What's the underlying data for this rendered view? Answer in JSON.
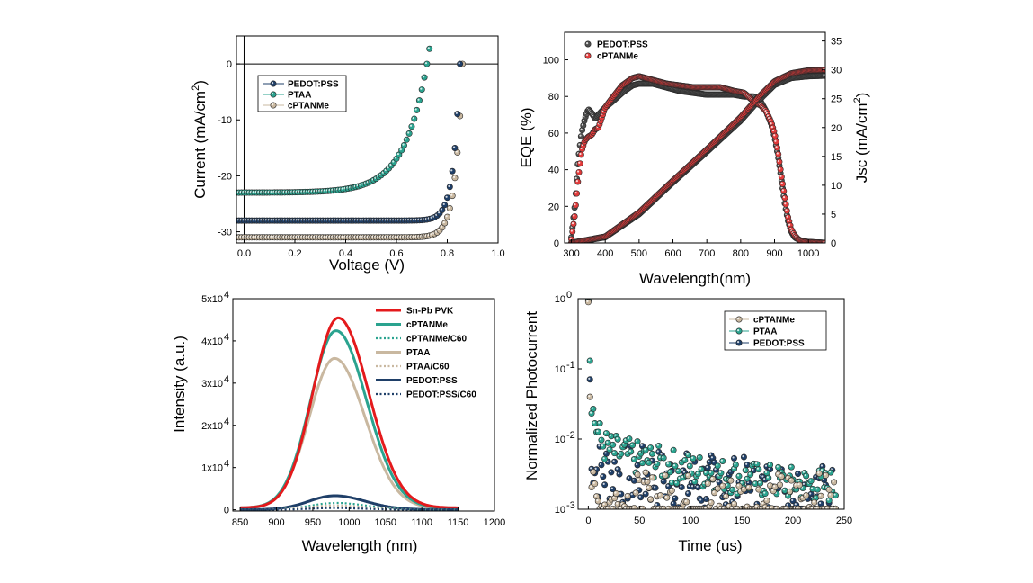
{
  "colors": {
    "pedot": "#1f3f68",
    "ptaa": "#2aa38f",
    "cptanme": "#c9b8a0",
    "snpb": "#e41a1c",
    "eqe_grey": "#4d4d4d",
    "eqe_red": "#e03a3a"
  },
  "chart_data": [
    {
      "id": "jv",
      "type": "line",
      "xlabel": "Voltage (V)",
      "ylabel": "Current (mA/cm2)",
      "xlim": [
        -0.03,
        1.0
      ],
      "ylim": [
        -32,
        5
      ],
      "xticks": [
        "0.0",
        "0.2",
        "0.4",
        "0.6",
        "0.8",
        "1.0"
      ],
      "xtick_values": [
        0,
        0.2,
        0.4,
        0.6,
        0.8,
        1.0
      ],
      "yticks": [
        "0",
        "-10",
        "-20",
        "-30"
      ],
      "ytick_values": [
        0,
        -10,
        -20,
        -30
      ],
      "legend": "upper-left",
      "series": [
        {
          "name": "PEDOT:PSS",
          "color_key": "pedot",
          "jsc": -28.0,
          "voc": 0.85,
          "n": 0.026
        },
        {
          "name": "PTAA",
          "color_key": "ptaa",
          "jsc": -23.0,
          "voc": 0.72,
          "n": 0.09
        },
        {
          "name": "cPTANMe",
          "color_key": "cptanme",
          "jsc": -31.0,
          "voc": 0.86,
          "n": 0.028
        }
      ]
    },
    {
      "id": "eqe",
      "type": "line",
      "xlabel": "Wavelength(nm)",
      "ylabel": "EQE (%)",
      "y2label": "Jsc (mA/cm2)",
      "xlim": [
        280,
        1050
      ],
      "ylim": [
        0,
        115
      ],
      "y2lim": [
        0,
        36.5
      ],
      "xticks": [
        "300",
        "400",
        "500",
        "600",
        "700",
        "800",
        "900",
        "1000"
      ],
      "xtick_values": [
        300,
        400,
        500,
        600,
        700,
        800,
        900,
        1000
      ],
      "yticks": [
        "0",
        "20",
        "40",
        "60",
        "80",
        "100"
      ],
      "ytick_values": [
        0,
        20,
        40,
        60,
        80,
        100
      ],
      "y2ticks": [
        "0",
        "5",
        "10",
        "15",
        "20",
        "25",
        "30",
        "35"
      ],
      "y2tick_values": [
        0,
        5,
        10,
        15,
        20,
        25,
        30,
        35
      ],
      "legend": "upper-left",
      "series": [
        {
          "name": "PEDOT:PSS",
          "color_key": "eqe_grey",
          "eqe": [
            [
              300,
              3
            ],
            [
              310,
              20
            ],
            [
              320,
              45
            ],
            [
              330,
              60
            ],
            [
              340,
              68
            ],
            [
              350,
              73
            ],
            [
              360,
              71
            ],
            [
              370,
              68
            ],
            [
              380,
              70
            ],
            [
              400,
              74
            ],
            [
              420,
              77
            ],
            [
              450,
              82
            ],
            [
              480,
              86
            ],
            [
              500,
              87
            ],
            [
              540,
              87
            ],
            [
              580,
              85
            ],
            [
              620,
              83
            ],
            [
              660,
              82
            ],
            [
              700,
              81
            ],
            [
              740,
              81
            ],
            [
              780,
              81
            ],
            [
              810,
              80
            ],
            [
              840,
              80
            ],
            [
              860,
              77
            ],
            [
              875,
              72
            ],
            [
              890,
              65
            ],
            [
              900,
              58
            ],
            [
              910,
              48
            ],
            [
              920,
              35
            ],
            [
              930,
              22
            ],
            [
              940,
              12
            ],
            [
              950,
              6
            ],
            [
              960,
              3
            ],
            [
              970,
              2
            ],
            [
              980,
              1
            ],
            [
              1000,
              0.5
            ],
            [
              1050,
              0
            ]
          ],
          "jsc": [
            [
              300,
              0
            ],
            [
              400,
              1
            ],
            [
              500,
              5
            ],
            [
              600,
              10.5
            ],
            [
              700,
              15.8
            ],
            [
              800,
              21.2
            ],
            [
              850,
              24.5
            ],
            [
              900,
              27.4
            ],
            [
              950,
              28.6
            ],
            [
              1000,
              28.9
            ],
            [
              1050,
              29
            ]
          ]
        },
        {
          "name": "cPTANMe",
          "color_key": "eqe_red",
          "eqe": [
            [
              300,
              2
            ],
            [
              310,
              15
            ],
            [
              320,
              35
            ],
            [
              330,
              50
            ],
            [
              340,
              56
            ],
            [
              350,
              58
            ],
            [
              360,
              59
            ],
            [
              370,
              62
            ],
            [
              380,
              63
            ],
            [
              400,
              74
            ],
            [
              420,
              79
            ],
            [
              450,
              86
            ],
            [
              480,
              90
            ],
            [
              500,
              91
            ],
            [
              540,
              89
            ],
            [
              580,
              87
            ],
            [
              620,
              86
            ],
            [
              660,
              85
            ],
            [
              700,
              85
            ],
            [
              740,
              85
            ],
            [
              780,
              83
            ],
            [
              810,
              82
            ],
            [
              840,
              77
            ],
            [
              860,
              75
            ],
            [
              875,
              72
            ],
            [
              890,
              66
            ],
            [
              900,
              60
            ],
            [
              910,
              50
            ],
            [
              920,
              37
            ],
            [
              930,
              25
            ],
            [
              940,
              14
            ],
            [
              950,
              7
            ],
            [
              960,
              4
            ],
            [
              970,
              2
            ],
            [
              980,
              1
            ],
            [
              1000,
              0.5
            ],
            [
              1050,
              0
            ]
          ],
          "jsc": [
            [
              300,
              0
            ],
            [
              400,
              1.1
            ],
            [
              500,
              5.3
            ],
            [
              600,
              10.8
            ],
            [
              700,
              16.2
            ],
            [
              800,
              21.8
            ],
            [
              850,
              25.1
            ],
            [
              900,
              28
            ],
            [
              950,
              29.4
            ],
            [
              1000,
              29.9
            ],
            [
              1050,
              30
            ]
          ]
        }
      ]
    },
    {
      "id": "pl",
      "type": "line",
      "xlabel": "Wavelength (nm)",
      "ylabel": "Intensity (a.u.)",
      "xlim": [
        840,
        1200
      ],
      "ylim": [
        -300,
        50000
      ],
      "xticks": [
        "850",
        "900",
        "950",
        "1000",
        "1050",
        "1100",
        "1150",
        "1200"
      ],
      "xtick_values": [
        850,
        900,
        950,
        1000,
        1050,
        1100,
        1150,
        1200
      ],
      "yticks": [
        "0",
        "1x10",
        "2x10",
        "3x10",
        "4x10",
        "5x10"
      ],
      "ytick_values": [
        0,
        10000,
        20000,
        30000,
        40000,
        50000
      ],
      "ytick_exponent": "4",
      "legend": "top-right",
      "series": [
        {
          "name": "Sn-Pb PVK",
          "color_key": "snpb",
          "dashed": false,
          "peak": 45000,
          "center": 985
        },
        {
          "name": "cPTANMe",
          "color_key": "ptaa",
          "dashed": false,
          "peak": 42000,
          "center": 982
        },
        {
          "name": "cPTANMe/C60",
          "color_key": "ptaa",
          "dashed": true,
          "peak": 1600,
          "center": 982
        },
        {
          "name": "PTAA",
          "color_key": "cptanme",
          "dashed": false,
          "peak": 35500,
          "center": 980
        },
        {
          "name": "PTAA/C60",
          "color_key": "cptanme",
          "dashed": true,
          "peak": 1000,
          "center": 980
        },
        {
          "name": "PEDOT:PSS",
          "color_key": "pedot",
          "dashed": false,
          "peak": 3300,
          "center": 980
        },
        {
          "name": "PEDOT:PSS/C60",
          "color_key": "pedot",
          "dashed": true,
          "peak": 400,
          "center": 980
        }
      ]
    },
    {
      "id": "tpc",
      "type": "line",
      "xlabel": "Time (us)",
      "ylabel": "Normalized Photocurrent",
      "xlim": [
        -10,
        250
      ],
      "ylim_log10": [
        -3,
        0
      ],
      "log_y": true,
      "xticks": [
        "0",
        "50",
        "100",
        "150",
        "200",
        "250"
      ],
      "xtick_values": [
        0,
        50,
        100,
        150,
        200,
        250
      ],
      "yticks": [
        "10",
        "10",
        "10",
        "10"
      ],
      "ytick_exponents": [
        "-3",
        "-2",
        "-1",
        "0"
      ],
      "ytick_values": [
        -3,
        -2,
        -1,
        0
      ],
      "legend": "top-right",
      "series": [
        {
          "name": "cPTANMe",
          "color_key": "cptanme",
          "tail": 0.0012,
          "tau": 1.0,
          "floor": 0.0012
        },
        {
          "name": "PTAA",
          "color_key": "ptaa",
          "tail": 0.0065,
          "tau": 80,
          "floor": 0.0018
        },
        {
          "name": "PEDOT:PSS",
          "color_key": "pedot",
          "tail": 0.0025,
          "tau": 120,
          "floor": 0.0013
        }
      ]
    }
  ]
}
